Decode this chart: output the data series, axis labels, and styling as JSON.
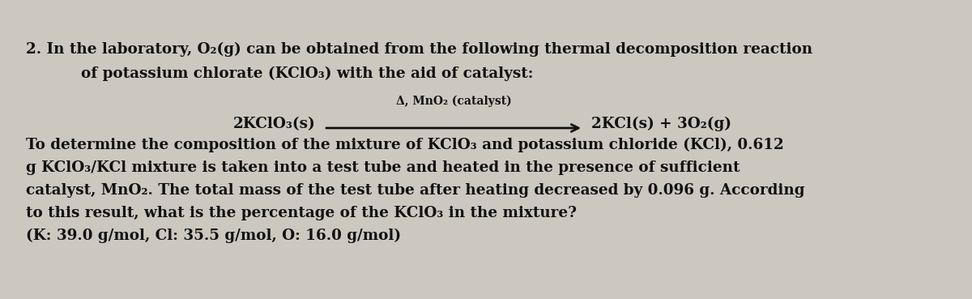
{
  "bg_color": "#ccc8c0",
  "text_color": "#111111",
  "fig_width": 12.0,
  "fig_height": 3.69,
  "line1": "2. In the laboratory, O₂(g) can be obtained from the following thermal decomposition reaction",
  "line2": "of potassium chlorate (KClO₃) with the aid of catalyst:",
  "reaction_left": "2KClO₃(s)",
  "reaction_right": "2KCl(s) + 3O₂(g)",
  "arrow_label_top": "Δ, MnO₂ (catalyst)",
  "para1": "To determine the composition of the mixture of KClO₃ and potassium chloride (KCl), 0.612",
  "para2": "g KClO₃/KCl mixture is taken into a test tube and heated in the presence of sufficient",
  "para3": "catalyst, MnO₂. The total mass of the test tube after heating decreased by 0.096 g. According",
  "para4": "to this result, what is the percentage of the KClO₃ in the mixture?",
  "para5": "(K: 39.0 g/mol, Cl: 35.5 g/mol, O: 16.0 g/mol)",
  "main_fontsize": 13.2,
  "reaction_fontsize": 13.2,
  "arrow_label_fontsize": 10.0,
  "dpi": 100
}
